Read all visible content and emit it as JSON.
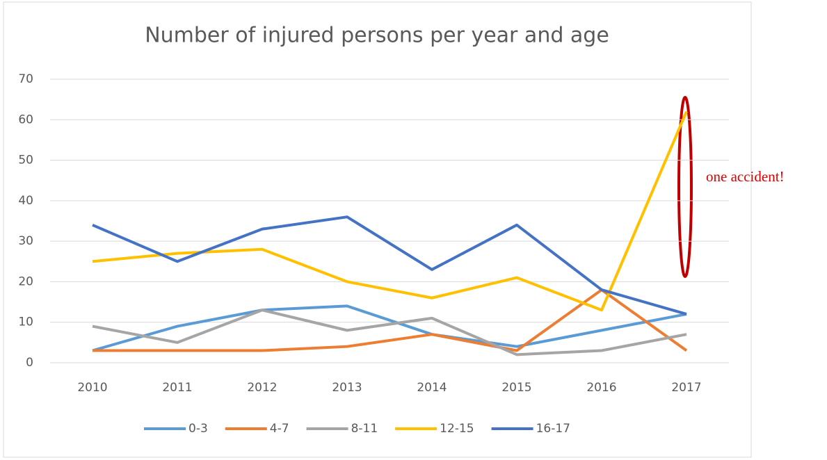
{
  "chart_data": {
    "type": "line",
    "title": "Number of injured persons per year and age",
    "categories": [
      "2010",
      "2011",
      "2012",
      "2013",
      "2014",
      "2015",
      "2016",
      "2017"
    ],
    "series": [
      {
        "name": "0-3",
        "color": "#5b9bd5",
        "values": [
          3,
          9,
          13,
          14,
          7,
          4,
          8,
          12
        ]
      },
      {
        "name": "4-7",
        "color": "#ed7d31",
        "values": [
          3,
          3,
          3,
          4,
          7,
          3,
          18,
          3
        ]
      },
      {
        "name": "8-11",
        "color": "#a5a5a5",
        "values": [
          9,
          5,
          13,
          8,
          11,
          2,
          3,
          7
        ]
      },
      {
        "name": "12-15",
        "color": "#ffc000",
        "values": [
          25,
          27,
          28,
          20,
          16,
          21,
          13,
          62
        ]
      },
      {
        "name": "16-17",
        "color": "#4472c4",
        "values": [
          34,
          25,
          33,
          36,
          23,
          34,
          18,
          12
        ]
      }
    ],
    "ylim": [
      0,
      70
    ],
    "yticks": [
      0,
      10,
      20,
      30,
      40,
      50,
      60,
      70
    ],
    "grid": true,
    "legend": "bottom",
    "annotation": "one accident!"
  }
}
